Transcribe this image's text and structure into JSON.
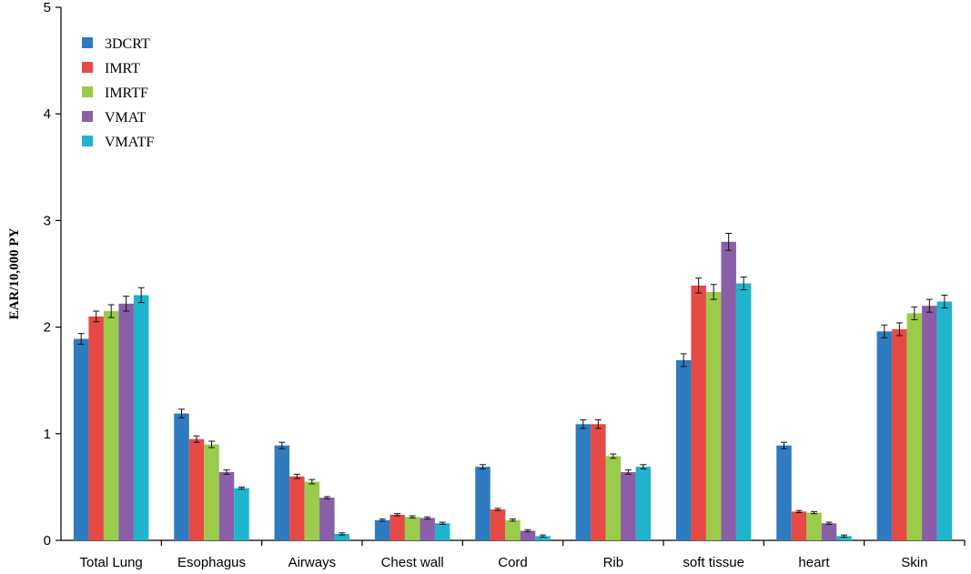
{
  "chart_data": {
    "type": "bar",
    "title": "",
    "xlabel": "",
    "ylabel": "EAR/10,000 PY",
    "ylim": [
      0,
      5
    ],
    "yticks": [
      "0",
      "1",
      "2",
      "3",
      "4",
      "5"
    ],
    "grid": false,
    "legend_position": "top-left",
    "error_bars": true,
    "categories": [
      "Total Lung",
      "Esophagus",
      "Airways",
      "Chest wall",
      "Cord",
      "Rib",
      "soft tissue",
      "heart",
      "Skin"
    ],
    "series": [
      {
        "name": "3DCRT",
        "color": "#2e7bc0",
        "values": [
          1.89,
          1.19,
          0.89,
          0.19,
          0.69,
          1.09,
          1.69,
          0.89,
          1.96
        ],
        "errors": [
          0.05,
          0.04,
          0.03,
          0.01,
          0.02,
          0.04,
          0.06,
          0.03,
          0.06
        ]
      },
      {
        "name": "IMRT",
        "color": "#e64a45",
        "values": [
          2.1,
          0.95,
          0.6,
          0.24,
          0.29,
          1.09,
          2.39,
          0.27,
          1.98
        ],
        "errors": [
          0.05,
          0.03,
          0.02,
          0.01,
          0.01,
          0.04,
          0.07,
          0.01,
          0.06
        ]
      },
      {
        "name": "IMRTF",
        "color": "#9acb4a",
        "values": [
          2.15,
          0.9,
          0.55,
          0.22,
          0.19,
          0.79,
          2.33,
          0.26,
          2.13
        ],
        "errors": [
          0.06,
          0.03,
          0.02,
          0.01,
          0.01,
          0.02,
          0.07,
          0.01,
          0.06
        ]
      },
      {
        "name": "VMAT",
        "color": "#8a5ea8",
        "values": [
          2.22,
          0.64,
          0.4,
          0.21,
          0.09,
          0.64,
          2.8,
          0.16,
          2.2
        ],
        "errors": [
          0.07,
          0.02,
          0.01,
          0.01,
          0.01,
          0.02,
          0.08,
          0.01,
          0.06
        ]
      },
      {
        "name": "VMATF",
        "color": "#1fb4cc",
        "values": [
          2.3,
          0.49,
          0.06,
          0.16,
          0.04,
          0.69,
          2.41,
          0.04,
          2.24
        ],
        "errors": [
          0.07,
          0.01,
          0.01,
          0.01,
          0.01,
          0.02,
          0.06,
          0.01,
          0.06
        ]
      }
    ]
  }
}
